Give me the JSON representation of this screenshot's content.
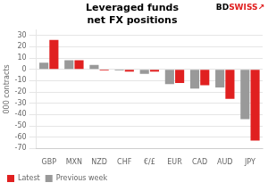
{
  "chart_data": {
    "type": "bar",
    "title": "Leveraged funds\nnet FX positions",
    "ylabel": "000 contracts",
    "categories": [
      "GBP",
      "MXN",
      "NZD",
      "CHF",
      "€/£",
      "EUR",
      "CAD",
      "AUD",
      "JPY"
    ],
    "series": [
      {
        "name": "Previous week",
        "color": "#999999",
        "values": [
          6,
          8,
          4,
          -1,
          -4,
          -13,
          -17,
          -16,
          -44
        ]
      },
      {
        "name": "Latest",
        "color": "#e02020",
        "values": [
          26,
          8,
          -1,
          -2,
          -2,
          -12,
          -14,
          -26,
          -63
        ]
      }
    ],
    "ylim": [
      -70,
      35
    ],
    "yticks": [
      30,
      20,
      10,
      0,
      -10,
      -20,
      -30,
      -40,
      -50,
      -60,
      -70
    ],
    "grid": true,
    "legend": "lower left",
    "annotations": [
      {
        "text": "BD",
        "color": "#000000"
      },
      {
        "text": "SWISS",
        "color": "#e02020"
      },
      {
        "text": "↗",
        "color": "#e02020"
      }
    ]
  }
}
